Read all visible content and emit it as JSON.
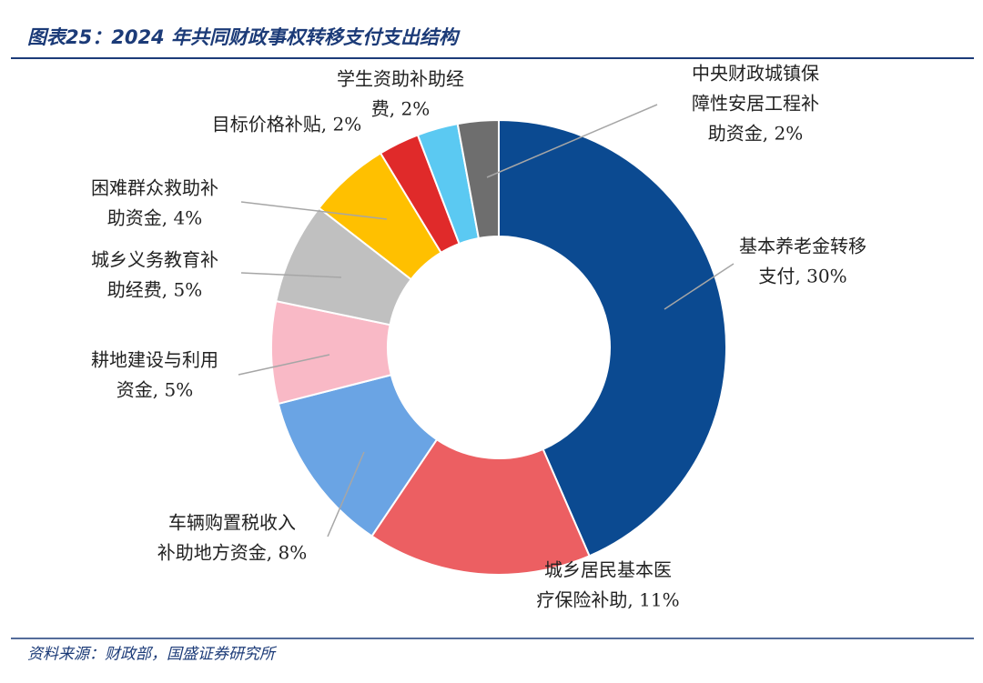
{
  "chart_data": {
    "type": "pie",
    "title": "图表25：2024 年共同财政事权转移支付支出结构",
    "source": "资料来源：财政部，国盛证券研究所",
    "values": [
      30,
      11,
      8,
      5,
      5,
      4,
      2,
      2,
      2
    ],
    "labels": [
      [
        "基本养老金转移",
        "支付, 30%"
      ],
      [
        "城乡居民基本医",
        "疗保险补助, 11%"
      ],
      [
        "车辆购置税收入",
        "补助地方资金, 8%"
      ],
      [
        "耕地建设与利用",
        "资金, 5%"
      ],
      [
        "城乡义务教育补",
        "助经费, 5%"
      ],
      [
        "困难群众救助补",
        "助资金, 4%"
      ],
      [
        "目标价格补贴, 2%"
      ],
      [
        "学生资助补助经",
        "费, 2%"
      ],
      [
        "中央财政城镇保",
        "障性安居工程补",
        "助资金, 2%"
      ]
    ],
    "colors": [
      "#0b4a91",
      "#ec5f62",
      "#6aa4e4",
      "#f9b9c6",
      "#c0c0c0",
      "#ffc000",
      "#e02a2a",
      "#5bc9f2",
      "#6e6e6e"
    ]
  }
}
